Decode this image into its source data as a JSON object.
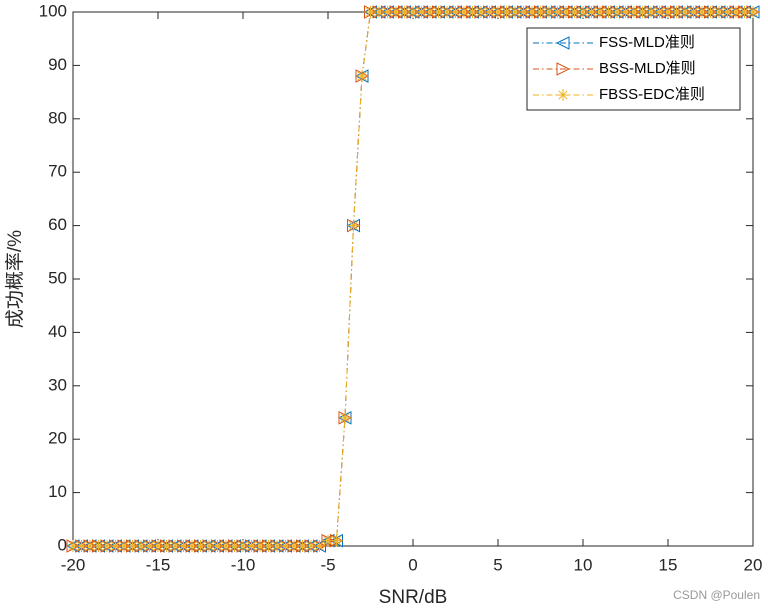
{
  "chart_data": {
    "type": "line",
    "x_label": "SNR/dB",
    "y_label": "成功概率/%",
    "watermark": "CSDN @Poulen",
    "x": [
      -20,
      -19.5,
      -19,
      -18.5,
      -18,
      -17.5,
      -17,
      -16.5,
      -16,
      -15.5,
      -15,
      -14.5,
      -14,
      -13.5,
      -13,
      -12.5,
      -12,
      -11.5,
      -11,
      -10.5,
      -10,
      -9.5,
      -9,
      -8.5,
      -8,
      -7.5,
      -7,
      -6.5,
      -6,
      -5.5,
      -5,
      -4.5,
      -4,
      -3.5,
      -3,
      -2.5,
      -2,
      -1.5,
      -1,
      -0.5,
      0,
      0.5,
      1,
      1.5,
      2,
      2.5,
      3,
      3.5,
      4,
      4.5,
      5,
      5.5,
      6,
      6.5,
      7,
      7.5,
      8,
      8.5,
      9,
      9.5,
      10,
      10.5,
      11,
      11.5,
      12,
      12.5,
      13,
      13.5,
      14,
      14.5,
      15,
      15.5,
      16,
      16.5,
      17,
      17.5,
      18,
      18.5,
      19,
      19.5,
      20
    ],
    "series": [
      {
        "name": "FSS-MLD准则",
        "color": "#0072BD",
        "marker": "triangle-left",
        "values": [
          0,
          0,
          0,
          0,
          0,
          0,
          0,
          0,
          0,
          0,
          0,
          0,
          0,
          0,
          0,
          0,
          0,
          0,
          0,
          0,
          0,
          0,
          0,
          0,
          0,
          0,
          0,
          0,
          0,
          0,
          1,
          1,
          24,
          60,
          88,
          100,
          100,
          100,
          100,
          100,
          100,
          100,
          100,
          100,
          100,
          100,
          100,
          100,
          100,
          100,
          100,
          100,
          100,
          100,
          100,
          100,
          100,
          100,
          100,
          100,
          100,
          100,
          100,
          100,
          100,
          100,
          100,
          100,
          100,
          100,
          100,
          100,
          100,
          100,
          100,
          100,
          100,
          100,
          100,
          100,
          100
        ]
      },
      {
        "name": "BSS-MLD准则",
        "color": "#D95319",
        "marker": "triangle-right",
        "values": [
          0,
          0,
          0,
          0,
          0,
          0,
          0,
          0,
          0,
          0,
          0,
          0,
          0,
          0,
          0,
          0,
          0,
          0,
          0,
          0,
          0,
          0,
          0,
          0,
          0,
          0,
          0,
          0,
          0,
          0,
          1,
          1,
          24,
          60,
          88,
          100,
          100,
          100,
          100,
          100,
          100,
          100,
          100,
          100,
          100,
          100,
          100,
          100,
          100,
          100,
          100,
          100,
          100,
          100,
          100,
          100,
          100,
          100,
          100,
          100,
          100,
          100,
          100,
          100,
          100,
          100,
          100,
          100,
          100,
          100,
          100,
          100,
          100,
          100,
          100,
          100,
          100,
          100,
          100,
          100,
          100
        ]
      },
      {
        "name": "FBSS-EDC准则",
        "color": "#EDB120",
        "marker": "asterisk",
        "values": [
          0,
          0,
          0,
          0,
          0,
          0,
          0,
          0,
          0,
          0,
          0,
          0,
          0,
          0,
          0,
          0,
          0,
          0,
          0,
          0,
          0,
          0,
          0,
          0,
          0,
          0,
          0,
          0,
          0,
          0,
          1,
          1,
          24,
          60,
          88,
          100,
          100,
          100,
          100,
          100,
          100,
          100,
          100,
          100,
          100,
          100,
          100,
          100,
          100,
          100,
          100,
          100,
          100,
          100,
          100,
          100,
          100,
          100,
          100,
          100,
          100,
          100,
          100,
          100,
          100,
          100,
          100,
          100,
          100,
          100,
          100,
          100,
          100,
          100,
          100,
          100,
          100,
          100,
          100,
          100,
          100
        ]
      }
    ],
    "xlim": [
      -20,
      20
    ],
    "ylim": [
      0,
      100
    ],
    "xticks": [
      -20,
      -15,
      -10,
      -5,
      0,
      5,
      10,
      15,
      20
    ],
    "yticks": [
      0,
      10,
      20,
      30,
      40,
      50,
      60,
      70,
      80,
      90,
      100
    ],
    "grid": false,
    "legend": "upper-right"
  }
}
